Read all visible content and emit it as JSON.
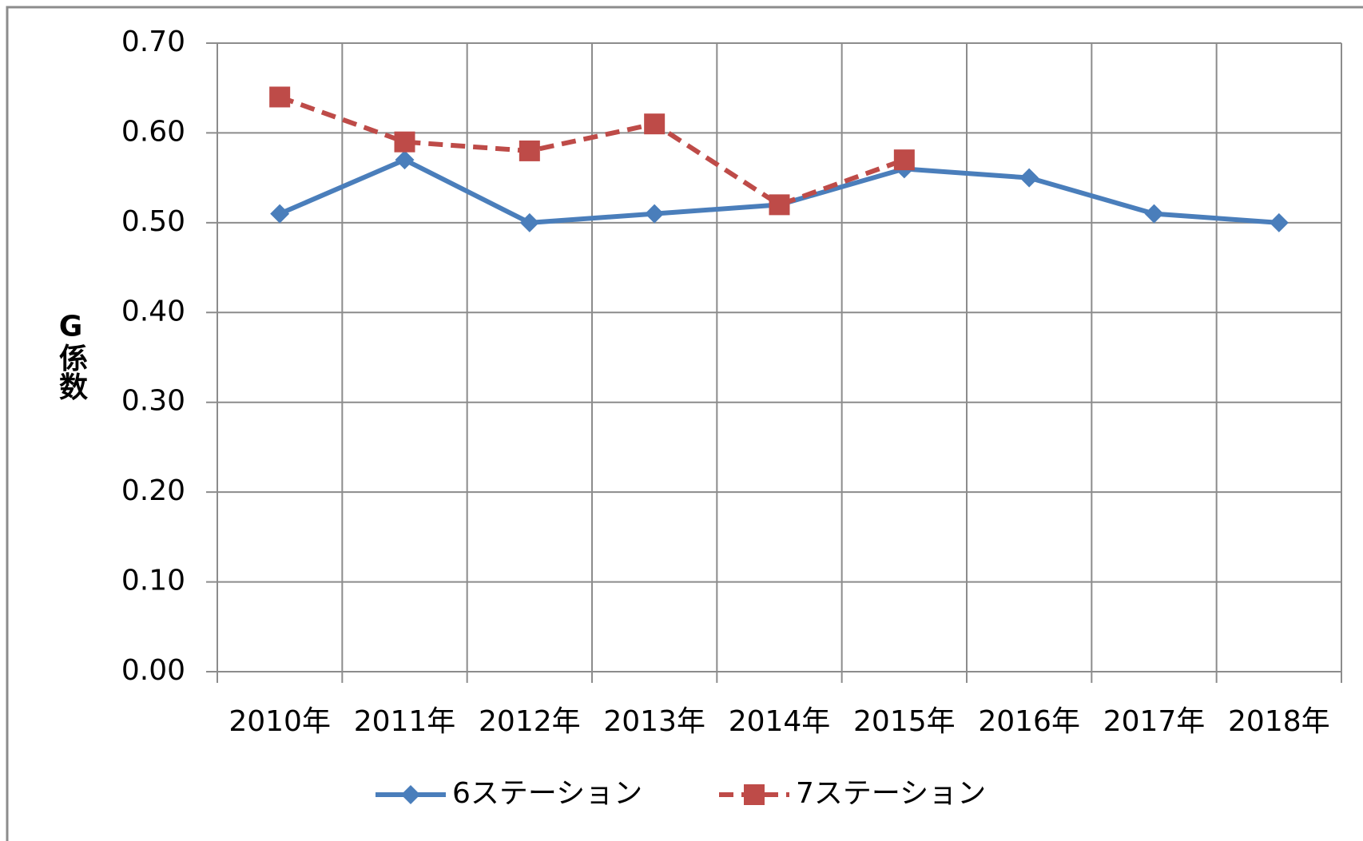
{
  "chart_data": {
    "type": "line",
    "categories": [
      "2010年",
      "2011年",
      "2012年",
      "2013年",
      "2014年",
      "2015年",
      "2016年",
      "2017年",
      "2018年"
    ],
    "y_label": "G係数",
    "ylim": [
      0,
      0.7
    ],
    "yticks": [
      {
        "value": 0,
        "label": "0.00"
      },
      {
        "value": 0.1,
        "label": "0.10"
      },
      {
        "value": 0.2,
        "label": "0.20"
      },
      {
        "value": 0.3,
        "label": "0.30"
      },
      {
        "value": 0.4,
        "label": "0.40"
      },
      {
        "value": 0.5,
        "label": "0.50"
      },
      {
        "value": 0.6,
        "label": "0.60"
      },
      {
        "value": 0.7,
        "label": "0.70"
      }
    ],
    "grid": true,
    "legend": "bottom",
    "series": [
      {
        "name": "6ステーション",
        "color": "#4a7ebb",
        "marker": "diamond",
        "dash": false,
        "values": [
          0.51,
          0.57,
          0.5,
          0.51,
          0.52,
          0.56,
          0.55,
          0.51,
          0.5
        ]
      },
      {
        "name": "7ステーション",
        "color": "#be4b48",
        "marker": "square",
        "dash": true,
        "values": [
          0.64,
          0.59,
          0.58,
          0.61,
          0.52,
          0.57,
          null,
          null,
          null
        ]
      }
    ]
  }
}
